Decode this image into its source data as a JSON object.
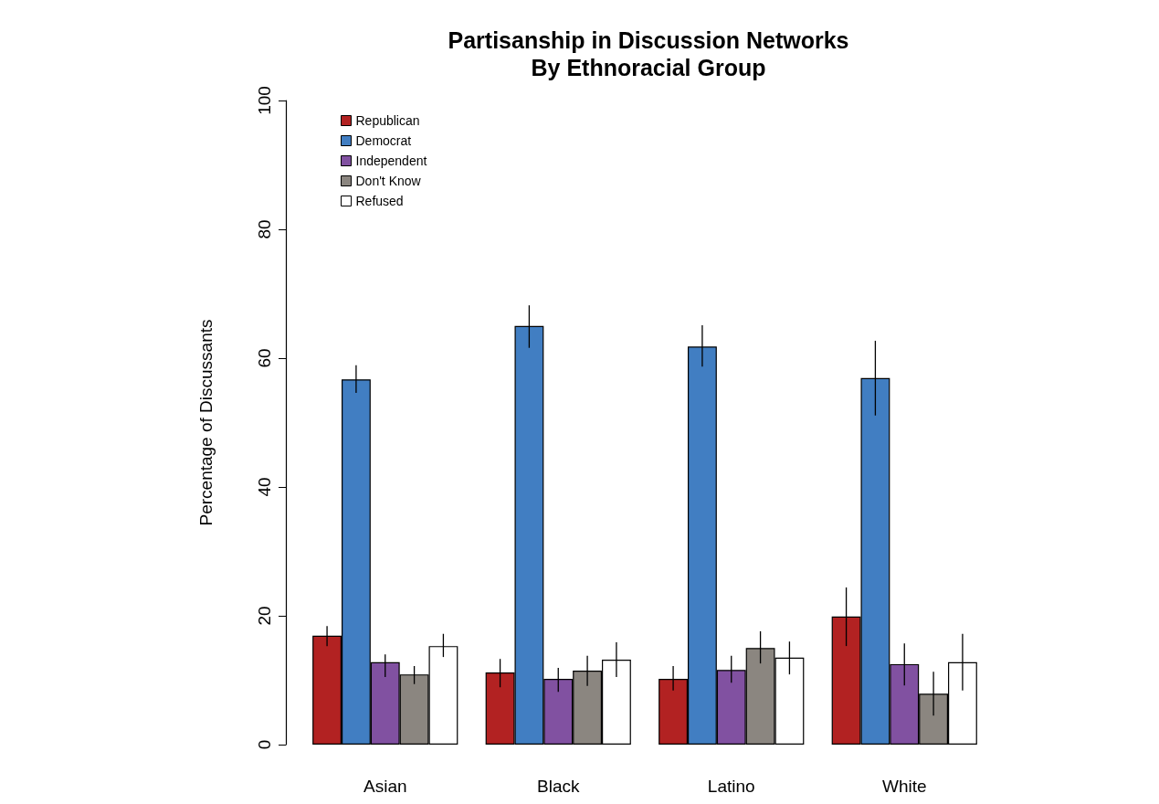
{
  "chart_data": {
    "type": "bar",
    "title": "Partisanship in Discussion Networks\nBy Ethnoracial Group",
    "ylabel": "Percentage of Discussants",
    "categories": [
      "Asian",
      "Black",
      "Latino",
      "White"
    ],
    "series": [
      {
        "name": "Republican",
        "color": "#b22222",
        "values": [
          16.9,
          11.2,
          10.2,
          19.9
        ],
        "errors": [
          [
            15.3,
            18.4
          ],
          [
            8.9,
            13.3
          ],
          [
            8.4,
            12.2
          ],
          [
            15.3,
            24.4
          ]
        ]
      },
      {
        "name": "Democrat",
        "color": "#417ec2",
        "values": [
          56.7,
          65.0,
          61.8,
          56.9
        ],
        "errors": [
          [
            54.6,
            58.9
          ],
          [
            61.6,
            68.2
          ],
          [
            58.7,
            65.1
          ],
          [
            51.1,
            62.7
          ]
        ]
      },
      {
        "name": "Independent",
        "color": "#8151a1",
        "values": [
          12.8,
          10.2,
          11.6,
          12.5
        ],
        "errors": [
          [
            10.5,
            14.0
          ],
          [
            8.2,
            11.9
          ],
          [
            9.6,
            13.8
          ],
          [
            9.2,
            15.7
          ]
        ]
      },
      {
        "name": "Don't Know",
        "color": "#8b8680",
        "values": [
          10.9,
          11.5,
          15.0,
          7.9
        ],
        "errors": [
          [
            9.4,
            12.2
          ],
          [
            9.1,
            13.8
          ],
          [
            12.6,
            17.6
          ],
          [
            4.5,
            11.3
          ]
        ]
      },
      {
        "name": "Refused",
        "color": "#ffffff",
        "values": [
          15.3,
          13.2,
          13.5,
          12.8
        ],
        "errors": [
          [
            13.6,
            17.2
          ],
          [
            10.5,
            15.9
          ],
          [
            10.9,
            16.0
          ],
          [
            8.4,
            17.2
          ]
        ]
      }
    ],
    "ylim": [
      0,
      100
    ],
    "yticks": [
      0,
      20,
      40,
      60,
      80,
      100
    ],
    "grid": false,
    "legend": "top left"
  }
}
